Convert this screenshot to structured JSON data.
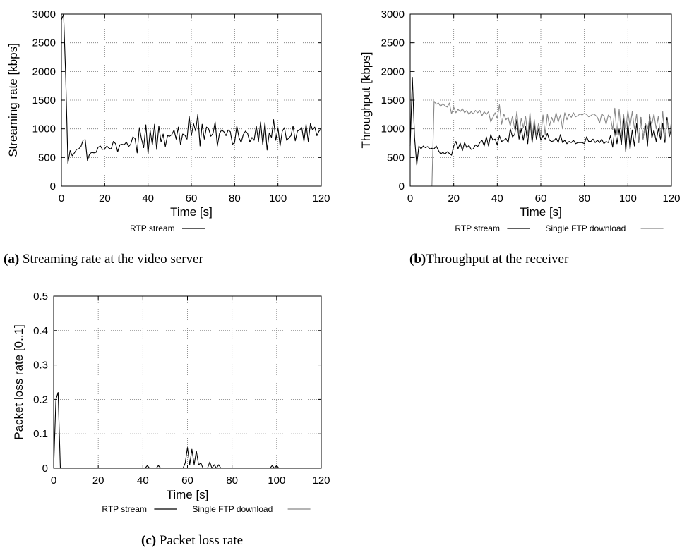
{
  "chart_data": [
    {
      "id": "a",
      "type": "line",
      "caption_tag": "(a)",
      "caption_text": " Streaming rate at the video server",
      "xlabel": "Time [s]",
      "ylabel": "Streaming rate [kbps]",
      "xlim": [
        0,
        120
      ],
      "ylim": [
        0,
        3000
      ],
      "xticks": [
        "0",
        "20",
        "40",
        "60",
        "80",
        "100",
        "120"
      ],
      "yticks": [
        "0",
        "500",
        "1000",
        "1500",
        "2000",
        "2500",
        "3000"
      ],
      "grid": true,
      "legend": "bottom-center",
      "series": [
        {
          "name": "RTP stream",
          "color": "#000000",
          "x": [
            0,
            1,
            2,
            3,
            4,
            5,
            6,
            7,
            8,
            9,
            10,
            11,
            12,
            13,
            14,
            15,
            16,
            17,
            18,
            19,
            20,
            21,
            22,
            23,
            24,
            25,
            26,
            27,
            28,
            29,
            30,
            31,
            32,
            33,
            34,
            35,
            36,
            37,
            38,
            39,
            40,
            41,
            42,
            43,
            44,
            45,
            46,
            47,
            48,
            49,
            50,
            51,
            52,
            53,
            54,
            55,
            56,
            57,
            58,
            59,
            60,
            61,
            62,
            63,
            64,
            65,
            66,
            67,
            68,
            69,
            70,
            71,
            72,
            73,
            74,
            75,
            76,
            77,
            78,
            79,
            80,
            81,
            82,
            83,
            84,
            85,
            86,
            87,
            88,
            89,
            90,
            91,
            92,
            93,
            94,
            95,
            96,
            97,
            98,
            99,
            100,
            101,
            102,
            103,
            104,
            105,
            106,
            107,
            108,
            109,
            110,
            111,
            112,
            113,
            114,
            115,
            116,
            117,
            118,
            119,
            120
          ],
          "y": [
            2900,
            3000,
            1900,
            400,
            620,
            530,
            580,
            640,
            650,
            690,
            800,
            810,
            450,
            560,
            590,
            580,
            590,
            680,
            700,
            640,
            650,
            700,
            660,
            650,
            780,
            740,
            600,
            720,
            730,
            720,
            770,
            690,
            730,
            860,
            830,
            580,
            1020,
            820,
            670,
            1070,
            560,
            970,
            720,
            1080,
            640,
            1050,
            770,
            910,
            690,
            880,
            870,
            900,
            980,
            820,
            1030,
            720,
            910,
            890,
            820,
            1220,
            880,
            1090,
            960,
            1250,
            700,
            1080,
            820,
            1030,
            1000,
            870,
            920,
            1120,
            700,
            920,
            980,
            950,
            880,
            980,
            950,
            730,
            760,
            1050,
            850,
            760,
            900,
            960,
            920,
            770,
            850,
            800,
            1050,
            780,
            1120,
            720,
            1110,
            630,
            930,
            850,
            1160,
            800,
            1020,
            700,
            960,
            1020,
            800,
            840,
            880,
            1050,
            790,
            960,
            980,
            1020,
            780,
            1080,
            780,
            1090,
            980,
            1030,
            880,
            960,
            1000
          ]
        }
      ]
    },
    {
      "id": "b",
      "type": "line",
      "caption_tag": "(b)",
      "caption_text": "Throughput at the receiver",
      "xlabel": "Time [s]",
      "ylabel": "Throughput [kbps]",
      "xlim": [
        0,
        120
      ],
      "ylim": [
        0,
        3000
      ],
      "xticks": [
        "0",
        "20",
        "40",
        "60",
        "80",
        "100",
        "120"
      ],
      "yticks": [
        "0",
        "500",
        "1000",
        "1500",
        "2000",
        "2500",
        "3000"
      ],
      "grid": true,
      "legend": "bottom-center",
      "series": [
        {
          "name": "RTP stream",
          "color": "#000000",
          "x": [
            0,
            1,
            2,
            3,
            4,
            5,
            6,
            7,
            8,
            9,
            10,
            11,
            12,
            13,
            14,
            15,
            16,
            17,
            18,
            19,
            20,
            21,
            22,
            23,
            24,
            25,
            26,
            27,
            28,
            29,
            30,
            31,
            32,
            33,
            34,
            35,
            36,
            37,
            38,
            39,
            40,
            41,
            42,
            43,
            44,
            45,
            46,
            47,
            48,
            49,
            50,
            51,
            52,
            53,
            54,
            55,
            56,
            57,
            58,
            59,
            60,
            61,
            62,
            63,
            64,
            65,
            66,
            67,
            68,
            69,
            70,
            71,
            72,
            73,
            74,
            75,
            76,
            77,
            78,
            79,
            80,
            81,
            82,
            83,
            84,
            85,
            86,
            87,
            88,
            89,
            90,
            91,
            92,
            93,
            94,
            95,
            96,
            97,
            98,
            99,
            100,
            101,
            102,
            103,
            104,
            105,
            106,
            107,
            108,
            109,
            110,
            111,
            112,
            113,
            114,
            115,
            116,
            117,
            118,
            119,
            120
          ],
          "y": [
            700,
            1900,
            850,
            370,
            700,
            650,
            700,
            670,
            690,
            650,
            660,
            650,
            700,
            620,
            560,
            590,
            560,
            600,
            570,
            540,
            700,
            780,
            650,
            750,
            620,
            760,
            670,
            710,
            640,
            650,
            720,
            690,
            760,
            800,
            700,
            860,
            700,
            900,
            800,
            820,
            720,
            880,
            780,
            800,
            830,
            760,
            1000,
            860,
            900,
            1160,
            820,
            1000,
            800,
            1040,
            740,
            1200,
            760,
            1080,
            820,
            1000,
            800,
            880,
            820,
            920,
            800,
            780,
            790,
            840,
            760,
            900,
            760,
            800,
            740,
            780,
            760,
            800,
            740,
            760,
            760,
            760,
            740,
            860,
            780,
            780,
            820,
            760,
            800,
            760,
            820,
            740,
            780,
            760,
            880,
            680,
            1000,
            740,
            1000,
            720,
            1200,
            600,
            1120,
            640,
            980,
            700,
            1100,
            760,
            1200,
            820,
            1100,
            700,
            1260,
            840,
            980,
            780,
            1000,
            820,
            1100,
            760,
            1200,
            860,
            1000
          ]
        },
        {
          "name": "Single FTP download",
          "color": "#888888",
          "x": [
            10,
            11,
            12,
            13,
            14,
            15,
            16,
            17,
            18,
            19,
            20,
            21,
            22,
            23,
            24,
            25,
            26,
            27,
            28,
            29,
            30,
            31,
            32,
            33,
            34,
            35,
            36,
            37,
            38,
            39,
            40,
            41,
            42,
            43,
            44,
            45,
            46,
            47,
            48,
            49,
            50,
            51,
            52,
            53,
            54,
            55,
            56,
            57,
            58,
            59,
            60,
            61,
            62,
            63,
            64,
            65,
            66,
            67,
            68,
            69,
            70,
            71,
            72,
            73,
            74,
            75,
            76,
            77,
            78,
            79,
            80,
            81,
            82,
            83,
            84,
            85,
            86,
            87,
            88,
            89,
            90,
            91,
            92,
            93,
            94,
            95,
            96,
            97,
            98,
            99,
            100,
            101,
            102,
            103,
            104,
            105,
            106,
            107,
            108,
            109,
            110,
            111,
            112,
            113,
            114,
            115,
            116,
            117,
            118,
            119,
            120
          ],
          "y": [
            0,
            1480,
            1430,
            1450,
            1390,
            1440,
            1400,
            1380,
            1450,
            1260,
            1380,
            1280,
            1340,
            1300,
            1350,
            1280,
            1320,
            1250,
            1300,
            1260,
            1320,
            1280,
            1320,
            1230,
            1300,
            1250,
            1300,
            1120,
            1200,
            1280,
            1180,
            1420,
            1080,
            1260,
            1160,
            1200,
            1050,
            1220,
            1000,
            1300,
            900,
            1180,
            1020,
            1220,
            880,
            1280,
            860,
            1160,
            880,
            1100,
            880,
            1240,
            900,
            1260,
            1050,
            1200,
            1100,
            1280,
            1120,
            1240,
            1000,
            1280,
            1160,
            1260,
            1200,
            1280,
            1210,
            1230,
            1260,
            1240,
            1270,
            1250,
            1210,
            1230,
            1260,
            1240,
            1200,
            1100,
            1260,
            1220,
            1080,
            1240,
            1200,
            980,
            1360,
            900,
            1340,
            880,
            1250,
            980,
            1320,
            1040,
            1300,
            1000,
            1260,
            780,
            1200,
            820,
            1100,
            1000,
            1180,
            1080,
            1260,
            1000,
            1220,
            880,
            1300,
            820,
            1150,
            900,
            1120
          ]
        }
      ]
    },
    {
      "id": "c",
      "type": "line",
      "caption_tag": "(c)",
      "caption_text": " Packet loss rate",
      "xlabel": "Time [s]",
      "ylabel": "Packet loss rate [0..1]",
      "xlim": [
        0,
        120
      ],
      "ylim": [
        0,
        0.5
      ],
      "xticks": [
        "0",
        "20",
        "40",
        "60",
        "80",
        "100",
        "120"
      ],
      "yticks": [
        "0",
        "0.1",
        "0.2",
        "0.3",
        "0.4",
        "0.5"
      ],
      "grid": true,
      "legend": "bottom-center",
      "series": [
        {
          "name": "RTP stream",
          "color": "#000000",
          "x": [
            0,
            1,
            2,
            3,
            4,
            41,
            42,
            43,
            46,
            47,
            48,
            58,
            59,
            60,
            61,
            62,
            63,
            64,
            65,
            66,
            67,
            69,
            70,
            71,
            72,
            73,
            74,
            75,
            97,
            98,
            99,
            100,
            101
          ],
          "y": [
            0,
            0.2,
            0.22,
            0,
            0,
            0,
            0.008,
            0,
            0,
            0.008,
            0,
            0,
            0.015,
            0.06,
            0.01,
            0.055,
            0.01,
            0.05,
            0.01,
            0.015,
            0,
            0,
            0.018,
            0,
            0.01,
            0,
            0.01,
            0,
            0,
            0.008,
            0,
            0.008,
            0
          ]
        },
        {
          "name": "Single FTP download",
          "color": "#888888",
          "x": [],
          "y": []
        }
      ]
    }
  ]
}
